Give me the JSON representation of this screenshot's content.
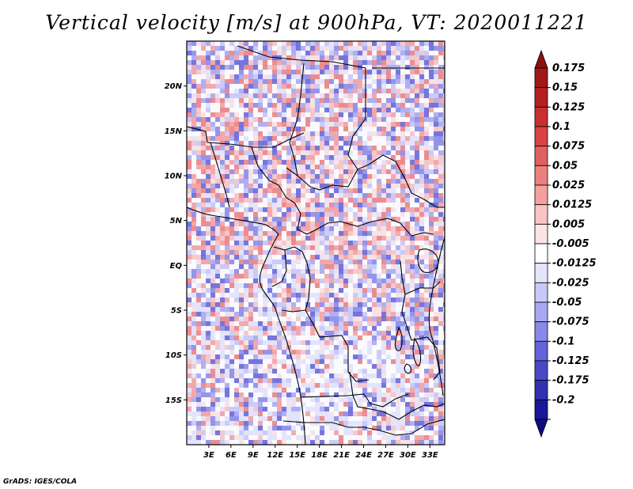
{
  "title": "Vertical velocity [m/s] at 900hPa, VT: 2020011221",
  "credit": "GrADS: IGES/COLA",
  "map": {
    "lon_range": [
      0,
      35
    ],
    "lat_range": [
      -20,
      25
    ],
    "lat_labels": [
      {
        "value": 20,
        "text": "20N"
      },
      {
        "value": 15,
        "text": "15N"
      },
      {
        "value": 10,
        "text": "10N"
      },
      {
        "value": 5,
        "text": "5N"
      },
      {
        "value": 0,
        "text": "EQ"
      },
      {
        "value": -5,
        "text": "5S"
      },
      {
        "value": -10,
        "text": "10S"
      },
      {
        "value": -15,
        "text": "15S"
      }
    ],
    "lon_labels": [
      {
        "value": 3,
        "text": "3E"
      },
      {
        "value": 6,
        "text": "6E"
      },
      {
        "value": 9,
        "text": "9E"
      },
      {
        "value": 12,
        "text": "12E"
      },
      {
        "value": 15,
        "text": "15E"
      },
      {
        "value": 18,
        "text": "18E"
      },
      {
        "value": 21,
        "text": "21E"
      },
      {
        "value": 24,
        "text": "24E"
      },
      {
        "value": 27,
        "text": "27E"
      },
      {
        "value": 30,
        "text": "30E"
      },
      {
        "value": 33,
        "text": "33E"
      }
    ]
  },
  "colorbar": {
    "levels": [
      {
        "label": "0.175",
        "color": "#a01818"
      },
      {
        "label": "0.15",
        "color": "#b42020"
      },
      {
        "label": "0.125",
        "color": "#c83030"
      },
      {
        "label": "0.1",
        "color": "#d84444"
      },
      {
        "label": "0.075",
        "color": "#e06060"
      },
      {
        "label": "0.05",
        "color": "#ec8080"
      },
      {
        "label": "0.025",
        "color": "#f4a0a0"
      },
      {
        "label": "0.0125",
        "color": "#f8c4c4"
      },
      {
        "label": "0.005",
        "color": "#fce4e4"
      },
      {
        "label": "-0.005",
        "color": "#ffffff"
      },
      {
        "label": "-0.0125",
        "color": "#e4e4fc"
      },
      {
        "label": "-0.025",
        "color": "#c8c8f8"
      },
      {
        "label": "-0.05",
        "color": "#a8a8f0"
      },
      {
        "label": "-0.075",
        "color": "#8888e8"
      },
      {
        "label": "-0.1",
        "color": "#6464d8"
      },
      {
        "label": "-0.125",
        "color": "#4848c8"
      },
      {
        "label": "-0.175",
        "color": "#3030b0"
      },
      {
        "label": "-0.2",
        "color": "#181898"
      }
    ],
    "top_color": "#8c1010",
    "bottom_color": "#100c80"
  }
}
